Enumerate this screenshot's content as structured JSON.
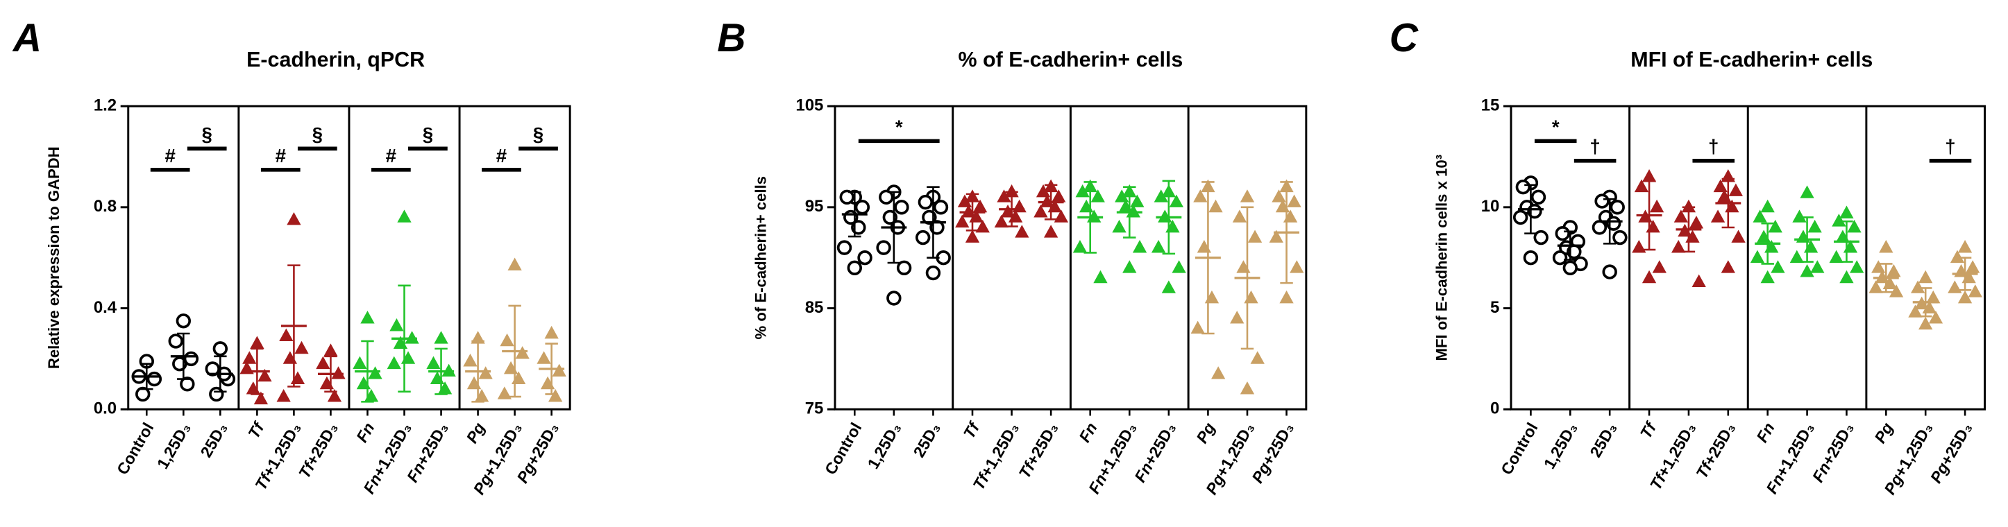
{
  "chart_data": [
    {
      "type": "dotplot",
      "panel": "A",
      "title": "E-cadherin, qPCR",
      "ylabel": "Relative expression to GAPDH",
      "ylim": [
        0,
        1.2
      ],
      "yticks": [
        {
          "value": 0,
          "label": "0.0"
        },
        0.4,
        0.8,
        1.2
      ],
      "groups": [
        {
          "color": "#000000",
          "marker": "circle",
          "categories": [
            "Control",
            "1,25D₃",
            "25D₃"
          ],
          "points": [
            [
              0.19,
              0.13,
              0.12,
              0.06
            ],
            [
              0.35,
              0.27,
              0.2,
              0.18,
              0.1
            ],
            [
              0.24,
              0.16,
              0.12,
              0.06,
              0.14
            ]
          ],
          "means": [
            0.13,
            0.21,
            0.14
          ],
          "sd": [
            0.05,
            0.09,
            0.07
          ]
        },
        {
          "color": "#a31b1b",
          "marker": "triangle",
          "categories": [
            "Tf",
            "Tf+1,25D₃",
            "Tf+25D₃"
          ],
          "points": [
            [
              0.26,
              0.2,
              0.13,
              0.08,
              0.04,
              0.16
            ],
            [
              0.75,
              0.29,
              0.24,
              0.2,
              0.12,
              0.05
            ],
            [
              0.23,
              0.18,
              0.14,
              0.1,
              0.05
            ]
          ],
          "means": [
            0.15,
            0.33,
            0.14
          ],
          "sd": [
            0.09,
            0.24,
            0.07
          ]
        },
        {
          "color": "#22c32a",
          "marker": "triangle",
          "categories": [
            "Fn",
            "Fn+1,25D₃",
            "Fn+25D₃"
          ],
          "points": [
            [
              0.36,
              0.18,
              0.14,
              0.1,
              0.05
            ],
            [
              0.76,
              0.33,
              0.28,
              0.26,
              0.2,
              0.18
            ],
            [
              0.28,
              0.18,
              0.15,
              0.12,
              0.08
            ]
          ],
          "means": [
            0.15,
            0.28,
            0.15
          ],
          "sd": [
            0.12,
            0.21,
            0.09
          ]
        },
        {
          "color": "#c9a064",
          "marker": "triangle",
          "categories": [
            "Pg",
            "Pg+1,25D₃",
            "Pg+25D₃"
          ],
          "points": [
            [
              0.28,
              0.19,
              0.14,
              0.1,
              0.05
            ],
            [
              0.57,
              0.27,
              0.22,
              0.16,
              0.12,
              0.06
            ],
            [
              0.3,
              0.2,
              0.15,
              0.1,
              0.05
            ]
          ],
          "means": [
            0.15,
            0.23,
            0.16
          ],
          "sd": [
            0.12,
            0.18,
            0.1
          ]
        }
      ],
      "annotations": [
        {
          "text": "#",
          "group": 0,
          "from": 0,
          "to": 1
        },
        {
          "text": "§",
          "group": 0,
          "from": 1,
          "to": 2
        },
        {
          "text": "#",
          "group": 1,
          "from": 0,
          "to": 1
        },
        {
          "text": "§",
          "group": 1,
          "from": 1,
          "to": 2
        },
        {
          "text": "#",
          "group": 2,
          "from": 0,
          "to": 1
        },
        {
          "text": "§",
          "group": 2,
          "from": 1,
          "to": 2
        },
        {
          "text": "#",
          "group": 3,
          "from": 0,
          "to": 1
        },
        {
          "text": "§",
          "group": 3,
          "from": 1,
          "to": 2
        }
      ]
    },
    {
      "type": "dotplot",
      "panel": "B",
      "title": "% of E-cadherin+ cells",
      "ylabel": "% of E-cadherin+ cells",
      "ylim": [
        75,
        105
      ],
      "yticks": [
        75,
        85,
        95,
        105
      ],
      "groups": [
        {
          "color": "#000000",
          "marker": "circle",
          "categories": [
            "Control",
            "1,25D₃",
            "25D₃"
          ],
          "points": [
            [
              96,
              96,
              95,
              94,
              93,
              91,
              90,
              89
            ],
            [
              96.5,
              96,
              95,
              94,
              93,
              91,
              89,
              86
            ],
            [
              96,
              95.5,
              95,
              94,
              93,
              92,
              90,
              88.5
            ]
          ],
          "means": [
            94.3,
            93,
            93.5
          ],
          "sd": [
            2.2,
            3.5,
            3.5
          ]
        },
        {
          "color": "#a31b1b",
          "marker": "triangle",
          "categories": [
            "Tf",
            "Tf+1,25D₃",
            "Tf+25D₃"
          ],
          "points": [
            [
              96,
              95.5,
              95,
              94.5,
              94,
              93.5,
              93,
              92
            ],
            [
              96.5,
              96,
              95,
              94.5,
              94,
              93.5,
              92.5
            ],
            [
              97,
              96.5,
              96,
              95.5,
              95,
              94.5,
              94,
              92.5
            ]
          ],
          "means": [
            94.5,
            94.8,
            95.5
          ],
          "sd": [
            1.8,
            1.7,
            1.7
          ]
        },
        {
          "color": "#22c32a",
          "marker": "triangle",
          "categories": [
            "Fn",
            "Fn+1,25D₃",
            "Fn+25D₃"
          ],
          "points": [
            [
              97,
              96.5,
              96,
              95,
              94,
              91,
              88
            ],
            [
              96.5,
              96,
              95.5,
              95,
              94.5,
              93,
              91,
              89
            ],
            [
              96.5,
              96,
              95.5,
              94,
              93,
              91,
              89,
              87
            ]
          ],
          "means": [
            94,
            94.5,
            94
          ],
          "sd": [
            3.5,
            2.5,
            3.6
          ]
        },
        {
          "color": "#c9a064",
          "marker": "triangle",
          "categories": [
            "Pg",
            "Pg+1,25D₃",
            "Pg+25D₃"
          ],
          "points": [
            [
              97,
              96,
              95,
              91,
              86,
              83,
              78.5
            ],
            [
              96,
              94,
              92,
              89,
              86,
              84,
              80,
              77
            ],
            [
              97,
              96,
              95.5,
              95,
              94,
              92,
              89,
              86
            ]
          ],
          "means": [
            90,
            88,
            92.5
          ],
          "sd": [
            7.5,
            7,
            5
          ]
        }
      ],
      "annotations": [
        {
          "text": "*",
          "group": 0,
          "from": 0,
          "to": 2
        }
      ]
    },
    {
      "type": "dotplot",
      "panel": "C",
      "title": "MFI of E-cadherin+ cells",
      "ylabel": "MFI of E-cadherin cells x 10³",
      "ylim": [
        0,
        15
      ],
      "yticks": [
        0,
        5,
        10,
        15
      ],
      "groups": [
        {
          "color": "#000000",
          "marker": "circle",
          "categories": [
            "Control",
            "1,25D₃",
            "25D₃"
          ],
          "points": [
            [
              11.2,
              11,
              10.5,
              10,
              9.8,
              9.5,
              8.5,
              7.5
            ],
            [
              9,
              8.7,
              8.3,
              8,
              7.8,
              7.5,
              7.2,
              7
            ],
            [
              10.5,
              10.3,
              10,
              9.5,
              9.2,
              9,
              8.5,
              6.8
            ]
          ],
          "means": [
            9.9,
            8.1,
            9.3
          ],
          "sd": [
            1.2,
            0.7,
            1.1
          ]
        },
        {
          "color": "#a31b1b",
          "marker": "triangle",
          "categories": [
            "Tf",
            "Tf+1,25D₃",
            "Tf+25D₃"
          ],
          "points": [
            [
              11.5,
              11,
              10,
              9.5,
              9,
              8,
              7,
              6.5
            ],
            [
              10,
              9.5,
              9.2,
              8.8,
              8.5,
              8,
              6.3
            ],
            [
              11.5,
              11,
              10.8,
              10.5,
              10,
              9.5,
              8.5,
              7
            ]
          ],
          "means": [
            9.6,
            8.9,
            10.2
          ],
          "sd": [
            1.7,
            1.1,
            1.2
          ]
        },
        {
          "color": "#22c32a",
          "marker": "triangle",
          "categories": [
            "Fn",
            "Fn+1,25D₃",
            "Fn+25D₃"
          ],
          "points": [
            [
              10,
              9.5,
              9,
              8.5,
              8,
              7.5,
              7,
              6.5
            ],
            [
              10.7,
              9.5,
              9,
              8.5,
              8,
              7.5,
              7,
              6.8
            ],
            [
              9.7,
              9.3,
              9,
              8.5,
              8,
              7.5,
              7,
              6.5
            ]
          ],
          "means": [
            8.2,
            8.4,
            8.3
          ],
          "sd": [
            1,
            1.1,
            1
          ]
        },
        {
          "color": "#c9a064",
          "marker": "triangle",
          "categories": [
            "Pg",
            "Pg+1,25D₃",
            "Pg+25D₃"
          ],
          "points": [
            [
              8,
              7,
              6.8,
              6.5,
              6.2,
              6,
              5.8
            ],
            [
              6.5,
              6,
              5.5,
              5.2,
              5,
              4.8,
              4.5,
              4.2
            ],
            [
              8,
              7.5,
              7,
              6.8,
              6.5,
              6,
              5.8,
              5.5
            ]
          ],
          "means": [
            6.5,
            5.3,
            6.7
          ],
          "sd": [
            0.7,
            0.7,
            0.8
          ]
        }
      ],
      "annotations": [
        {
          "text": "*",
          "group": 0,
          "from": 0,
          "to": 1
        },
        {
          "text": "†",
          "group": 0,
          "from": 1,
          "to": 2
        },
        {
          "text": "†",
          "group": 1,
          "from": 1,
          "to": 2
        },
        {
          "text": "†",
          "group": 3,
          "from": 1,
          "to": 2
        }
      ]
    }
  ]
}
